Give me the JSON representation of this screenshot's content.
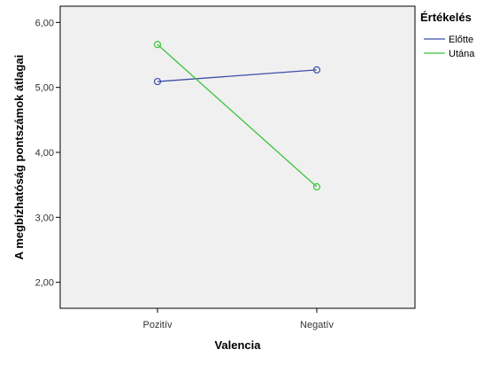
{
  "chart_data": {
    "type": "line",
    "title": "",
    "xlabel": "Valencia",
    "ylabel": "A megbízhatóság pontszámok átlagai",
    "categories": [
      "Pozitív",
      "Negatív"
    ],
    "ylim": [
      1.6,
      6.25
    ],
    "yticks": [
      2.0,
      3.0,
      4.0,
      5.0,
      6.0
    ],
    "ytick_labels": [
      "2,00",
      "3,00",
      "4,00",
      "5,00",
      "6,00"
    ],
    "grid": false,
    "legend": {
      "title": "Értékelés",
      "placement": "right"
    },
    "series": [
      {
        "name": "Előtte",
        "values": [
          5.09,
          5.27
        ],
        "color": "#3f4fa8"
      },
      {
        "name": "Utána",
        "values": [
          5.66,
          3.47
        ],
        "color": "#3cc43c"
      }
    ],
    "plot_background": "#f0f0f0"
  }
}
